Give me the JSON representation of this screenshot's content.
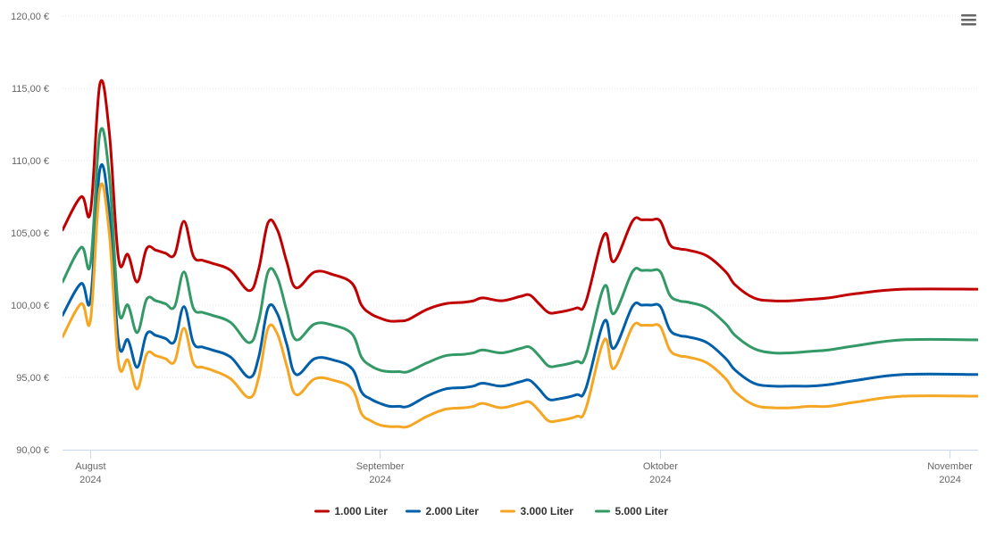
{
  "chart_data": {
    "type": "line",
    "y_unit_suffix": " €",
    "ylim": [
      90,
      120
    ],
    "y_ticks": [
      "90,00 €",
      "95,00 €",
      "100,00 €",
      "105,00 €",
      "110,00 €",
      "115,00 €",
      "120,00 €"
    ],
    "y_tick_values": [
      90,
      95,
      100,
      105,
      110,
      115,
      120
    ],
    "x_ticks": [
      {
        "date": "2024-08-01",
        "month": "August",
        "year": "2024"
      },
      {
        "date": "2024-09-01",
        "month": "September",
        "year": "2024"
      },
      {
        "date": "2024-10-01",
        "month": "Oktober",
        "year": "2024"
      },
      {
        "date": "2024-11-01",
        "month": "November",
        "year": "2024"
      }
    ],
    "xlim": [
      "2024-07-29",
      "2024-11-04"
    ],
    "x": [
      "2024-07-29",
      "2024-07-31",
      "2024-08-01",
      "2024-08-02",
      "2024-08-03",
      "2024-08-04",
      "2024-08-05",
      "2024-08-06",
      "2024-08-07",
      "2024-08-08",
      "2024-08-09",
      "2024-08-10",
      "2024-08-11",
      "2024-08-12",
      "2024-08-13",
      "2024-08-14",
      "2024-08-16",
      "2024-08-18",
      "2024-08-19",
      "2024-08-20",
      "2024-08-21",
      "2024-08-22",
      "2024-08-23",
      "2024-08-25",
      "2024-08-27",
      "2024-08-29",
      "2024-08-30",
      "2024-08-31",
      "2024-09-01",
      "2024-09-02",
      "2024-09-03",
      "2024-09-04",
      "2024-09-06",
      "2024-09-08",
      "2024-09-10",
      "2024-09-11",
      "2024-09-12",
      "2024-09-14",
      "2024-09-16",
      "2024-09-17",
      "2024-09-18",
      "2024-09-19",
      "2024-09-20",
      "2024-09-22",
      "2024-09-23",
      "2024-09-25",
      "2024-09-26",
      "2024-09-28",
      "2024-09-29",
      "2024-09-30",
      "2024-10-01",
      "2024-10-02",
      "2024-10-03",
      "2024-10-04",
      "2024-10-06",
      "2024-10-08",
      "2024-10-09",
      "2024-10-11",
      "2024-10-13",
      "2024-10-15",
      "2024-10-17",
      "2024-10-19",
      "2024-10-22",
      "2024-10-27",
      "2024-11-04"
    ],
    "series": [
      {
        "name": "1.000 Liter",
        "color": "#c00000",
        "values": [
          105.2,
          107.5,
          106.5,
          115.3,
          112.0,
          103.2,
          103.5,
          101.6,
          103.9,
          103.8,
          103.6,
          103.5,
          105.8,
          103.4,
          103.1,
          102.9,
          102.4,
          101.0,
          102.5,
          105.7,
          105.2,
          103.0,
          101.2,
          102.3,
          102.1,
          101.5,
          100.0,
          99.4,
          99.1,
          98.9,
          98.9,
          99.0,
          99.7,
          100.1,
          100.2,
          100.3,
          100.5,
          100.3,
          100.6,
          100.7,
          100.1,
          99.5,
          99.5,
          99.8,
          100.2,
          104.9,
          103.0,
          105.8,
          105.9,
          105.9,
          105.8,
          104.2,
          103.9,
          103.8,
          103.4,
          102.3,
          101.4,
          100.5,
          100.3,
          100.3,
          100.4,
          100.5,
          100.8,
          101.1,
          101.1
        ]
      },
      {
        "name": "2.000 Liter",
        "color": "#005fa8",
        "values": [
          99.3,
          101.5,
          100.4,
          109.4,
          106.5,
          97.4,
          97.6,
          95.7,
          98.0,
          97.9,
          97.7,
          97.5,
          99.9,
          97.4,
          97.1,
          96.9,
          96.4,
          95.0,
          96.4,
          99.8,
          99.4,
          97.3,
          95.2,
          96.3,
          96.2,
          95.6,
          94.0,
          93.5,
          93.2,
          93.0,
          93.0,
          93.0,
          93.7,
          94.2,
          94.3,
          94.4,
          94.6,
          94.4,
          94.7,
          94.8,
          94.2,
          93.5,
          93.5,
          93.8,
          94.2,
          98.9,
          97.0,
          99.9,
          100.0,
          100.0,
          99.9,
          98.3,
          97.9,
          97.8,
          97.4,
          96.3,
          95.5,
          94.6,
          94.4,
          94.4,
          94.4,
          94.5,
          94.8,
          95.2,
          95.2
        ]
      },
      {
        "name": "3.000 Liter",
        "color": "#f5a623",
        "values": [
          97.8,
          100.1,
          99.0,
          108.1,
          105.0,
          96.0,
          96.2,
          94.2,
          96.6,
          96.5,
          96.3,
          96.1,
          98.4,
          96.0,
          95.7,
          95.5,
          94.9,
          93.6,
          95.0,
          98.4,
          98.0,
          95.8,
          93.8,
          94.9,
          94.8,
          94.2,
          92.5,
          92.0,
          91.7,
          91.6,
          91.6,
          91.6,
          92.3,
          92.8,
          92.9,
          93.0,
          93.2,
          92.9,
          93.2,
          93.3,
          92.7,
          92.0,
          92.0,
          92.3,
          92.8,
          97.6,
          95.6,
          98.5,
          98.6,
          98.6,
          98.5,
          96.9,
          96.5,
          96.4,
          96.0,
          94.9,
          94.0,
          93.1,
          92.9,
          92.9,
          93.0,
          93.0,
          93.3,
          93.7,
          93.7
        ]
      },
      {
        "name": "5.000 Liter",
        "color": "#339966",
        "values": [
          101.6,
          104.0,
          102.9,
          111.9,
          109.0,
          99.7,
          100.0,
          98.1,
          100.4,
          100.3,
          100.1,
          99.9,
          102.3,
          99.8,
          99.5,
          99.3,
          98.8,
          97.4,
          98.9,
          102.3,
          101.9,
          99.6,
          97.6,
          98.7,
          98.6,
          98.0,
          96.4,
          95.8,
          95.5,
          95.4,
          95.4,
          95.4,
          96.0,
          96.5,
          96.6,
          96.7,
          96.9,
          96.7,
          97.0,
          97.1,
          96.5,
          95.8,
          95.8,
          96.1,
          96.5,
          101.3,
          99.4,
          102.3,
          102.4,
          102.4,
          102.3,
          100.7,
          100.3,
          100.2,
          99.8,
          98.7,
          97.9,
          97.0,
          96.7,
          96.7,
          96.8,
          96.9,
          97.2,
          97.6,
          97.6
        ]
      }
    ],
    "legend_position": "bottom-center",
    "grid": true,
    "menu_icon": "hamburger-menu-icon"
  }
}
